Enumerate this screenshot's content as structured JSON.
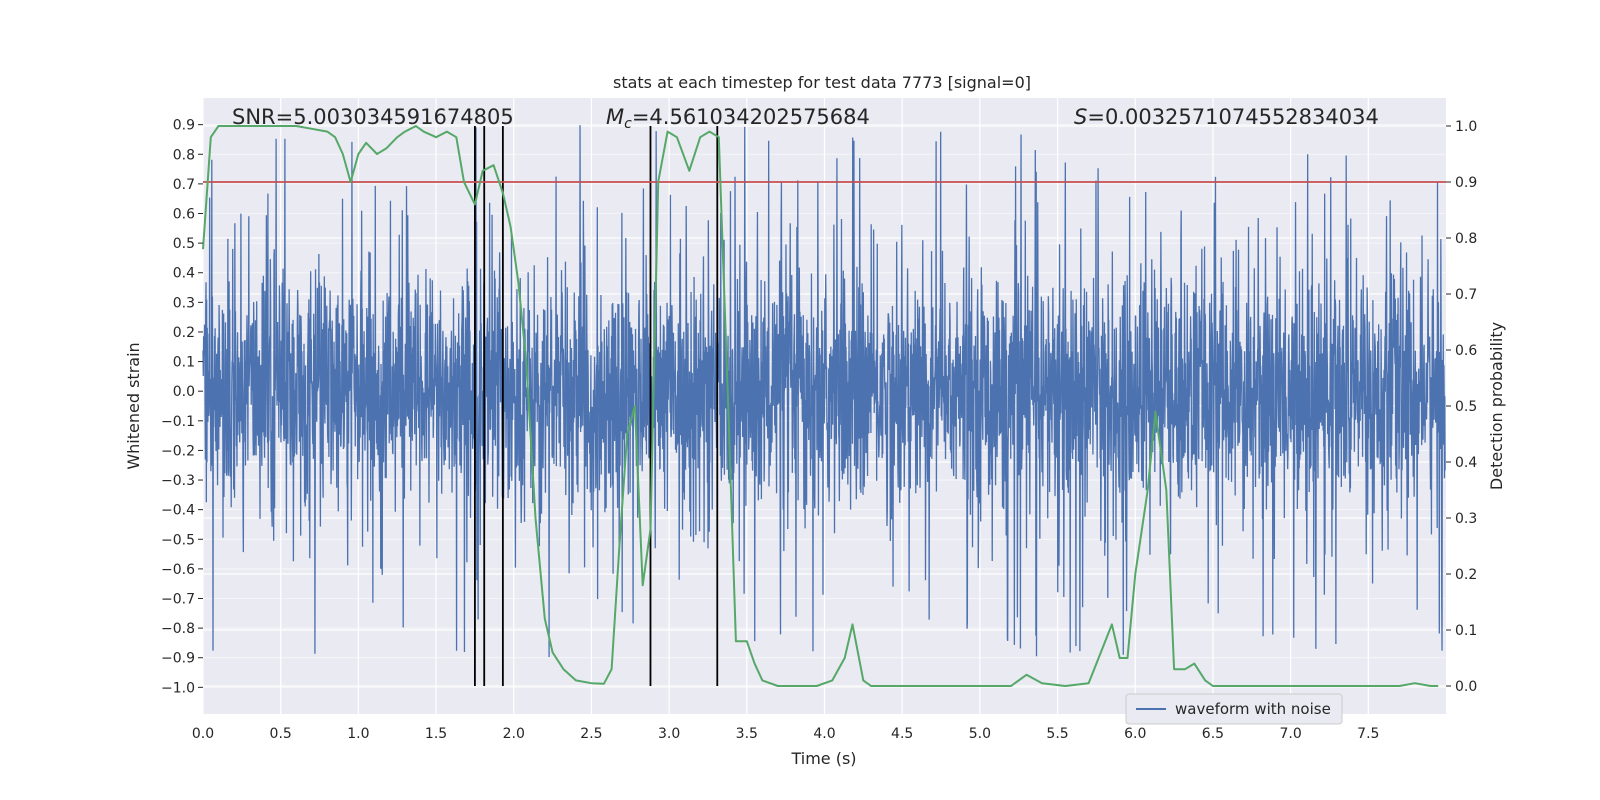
{
  "chart_data": {
    "type": "line",
    "title": "stats at each timestep for test data 7773 [signal=0]",
    "xlabel": "Time (s)",
    "ylabel": "Whitened strain",
    "y2label": "Detection probability",
    "xlim": [
      0,
      8
    ],
    "ylim": [
      -1.09,
      0.99
    ],
    "y2lim": [
      -0.05,
      1.05
    ],
    "xticks": [
      "0.0",
      "0.5",
      "1.0",
      "1.5",
      "2.0",
      "2.5",
      "3.0",
      "3.5",
      "4.0",
      "4.5",
      "5.0",
      "5.5",
      "6.0",
      "6.5",
      "7.0",
      "7.5"
    ],
    "yticks": [
      "0.9",
      "0.8",
      "0.7",
      "0.6",
      "0.5",
      "0.4",
      "0.3",
      "0.2",
      "0.1",
      "0.0",
      "−0.1",
      "−0.2",
      "−0.3",
      "−0.4",
      "−0.5",
      "−0.6",
      "−0.7",
      "−0.8",
      "−0.9",
      "−1.0"
    ],
    "y2ticks": [
      "1.0",
      "0.9",
      "0.8",
      "0.7",
      "0.6",
      "0.5",
      "0.4",
      "0.3",
      "0.2",
      "0.1",
      "0.0"
    ],
    "annotations": {
      "snr": "SNR=5.003034591674805",
      "mc_symbol": "M",
      "mc_sub": "c",
      "mc_value": "=4.561034202575684",
      "s_symbol": "S",
      "s_value": "=0.003257107455283403​4"
    },
    "threshold": 0.9,
    "vertical_markers": [
      1.75,
      1.81,
      1.93,
      2.88,
      3.31
    ],
    "series": [
      {
        "name": "waveform with noise",
        "axis": "left",
        "color": "#4c72b0",
        "description": "dense noisy whitened strain, envelope approx ±0.3 with spikes to ±0.9",
        "envelope": 0.32,
        "peak_max": 0.9,
        "peak_min": -1.0,
        "samples": 4096
      },
      {
        "name": "detection probability",
        "axis": "right",
        "color": "#55a868",
        "x": [
          0.0,
          0.05,
          0.1,
          0.2,
          0.4,
          0.6,
          0.7,
          0.8,
          0.85,
          0.9,
          0.95,
          1.0,
          1.05,
          1.12,
          1.18,
          1.25,
          1.3,
          1.37,
          1.42,
          1.5,
          1.57,
          1.63,
          1.68,
          1.75,
          1.8,
          1.87,
          1.93,
          1.98,
          2.03,
          2.08,
          2.14,
          2.2,
          2.25,
          2.32,
          2.4,
          2.5,
          2.58,
          2.63,
          2.68,
          2.73,
          2.78,
          2.83,
          2.88,
          2.93,
          2.99,
          3.05,
          3.13,
          3.2,
          3.26,
          3.32,
          3.38,
          3.43,
          3.5,
          3.55,
          3.6,
          3.7,
          3.8,
          3.95,
          4.05,
          4.13,
          4.18,
          4.25,
          4.3,
          4.4,
          4.5,
          4.7,
          4.9,
          5.1,
          5.2,
          5.3,
          5.4,
          5.55,
          5.7,
          5.75,
          5.85,
          5.9,
          5.95,
          6.0,
          6.08,
          6.13,
          6.2,
          6.25,
          6.32,
          6.38,
          6.45,
          6.5,
          6.6,
          6.8,
          7.0,
          7.3,
          7.5,
          7.7,
          7.8,
          7.9,
          7.95
        ],
        "y": [
          0.78,
          0.98,
          1.0,
          1.0,
          1.0,
          1.0,
          0.995,
          0.99,
          0.98,
          0.95,
          0.9,
          0.95,
          0.97,
          0.95,
          0.96,
          0.98,
          0.99,
          1.0,
          0.99,
          0.98,
          0.99,
          0.98,
          0.9,
          0.86,
          0.92,
          0.93,
          0.88,
          0.82,
          0.72,
          0.58,
          0.3,
          0.12,
          0.06,
          0.03,
          0.01,
          0.005,
          0.004,
          0.03,
          0.25,
          0.45,
          0.5,
          0.18,
          0.28,
          0.9,
          0.99,
          0.98,
          0.92,
          0.98,
          0.99,
          0.98,
          0.5,
          0.08,
          0.08,
          0.04,
          0.01,
          0.0,
          0.0,
          0.0,
          0.01,
          0.05,
          0.11,
          0.01,
          0.0,
          0.0,
          0.0,
          0.0,
          0.0,
          0.0,
          0.0,
          0.02,
          0.005,
          0.0,
          0.005,
          0.04,
          0.11,
          0.05,
          0.05,
          0.2,
          0.35,
          0.49,
          0.35,
          0.03,
          0.03,
          0.04,
          0.01,
          0.0,
          0.0,
          0.0,
          0.0,
          0.0,
          0.0,
          0.0,
          0.005,
          0.0,
          0.0
        ]
      }
    ],
    "legend": {
      "label": "waveform with noise",
      "placement": "lower-center-right"
    },
    "grid": true
  }
}
